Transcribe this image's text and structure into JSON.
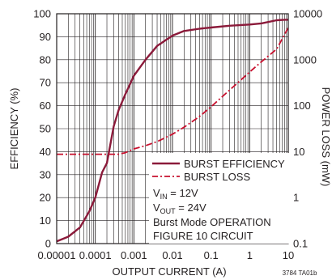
{
  "chart_data": {
    "type": "line",
    "xlabel": "OUTPUT CURRENT (A)",
    "ylabel_left": "EFFICIENCY (%)",
    "ylabel_right": "POWER LOSS (mW)",
    "x_scale": "log",
    "y_right_scale": "log",
    "xlim": [
      1e-05,
      10
    ],
    "ylim_left": [
      0,
      100
    ],
    "ylim_right": [
      0.1,
      10000
    ],
    "x_ticks": [
      "0.00001",
      "0.0001",
      "0.001",
      "0.01",
      "0.1",
      "1",
      "10"
    ],
    "y_left_ticks": [
      "0",
      "10",
      "20",
      "30",
      "40",
      "50",
      "60",
      "70",
      "80",
      "90",
      "100"
    ],
    "y_right_ticks": [
      "0.1",
      "1",
      "10",
      "100",
      "1000",
      "10000"
    ],
    "grid": true,
    "legend_position": "bottom-right",
    "series": [
      {
        "name": "BURST EFFICIENCY",
        "axis": "left",
        "style": "solid",
        "color": "#8b1a3a",
        "x": [
          1e-05,
          2e-05,
          4e-05,
          7e-05,
          0.0001,
          0.00015,
          0.0002,
          0.0003,
          0.0004,
          0.0006,
          0.001,
          0.002,
          0.004,
          0.01,
          0.02,
          0.05,
          0.1,
          0.3,
          1,
          2,
          5,
          8,
          10
        ],
        "y": [
          1,
          3,
          7,
          14,
          20,
          31,
          35,
          51,
          58,
          65,
          73,
          80,
          86,
          90.5,
          92.5,
          93.5,
          94,
          94.8,
          95.3,
          95.8,
          97.2,
          97.4,
          97.4
        ]
      },
      {
        "name": "BURST LOSS",
        "axis": "right",
        "style": "dash-dot",
        "color": "#c8102e",
        "x": [
          1e-05,
          0.0001,
          0.0002,
          0.0004,
          0.0006,
          0.001,
          0.002,
          0.004,
          0.01,
          0.02,
          0.05,
          0.1,
          0.2,
          0.5,
          1,
          2,
          5,
          10
        ],
        "y": [
          8.8,
          8.8,
          8.8,
          8.8,
          9.5,
          11.5,
          13.5,
          16.5,
          24,
          34,
          58,
          95,
          160,
          320,
          540,
          900,
          1700,
          5000
        ]
      }
    ],
    "annotations": {
      "vin_base": "V",
      "vin_sub": "IN",
      "vin_val": " = 12V",
      "vout_base": "V",
      "vout_sub": "OUT",
      "vout_val": " = 24V",
      "mode": "Burst Mode OPERATION",
      "circuit": "FIGURE 10 CIRCUIT",
      "figure_id": "3784 TA01b"
    }
  }
}
